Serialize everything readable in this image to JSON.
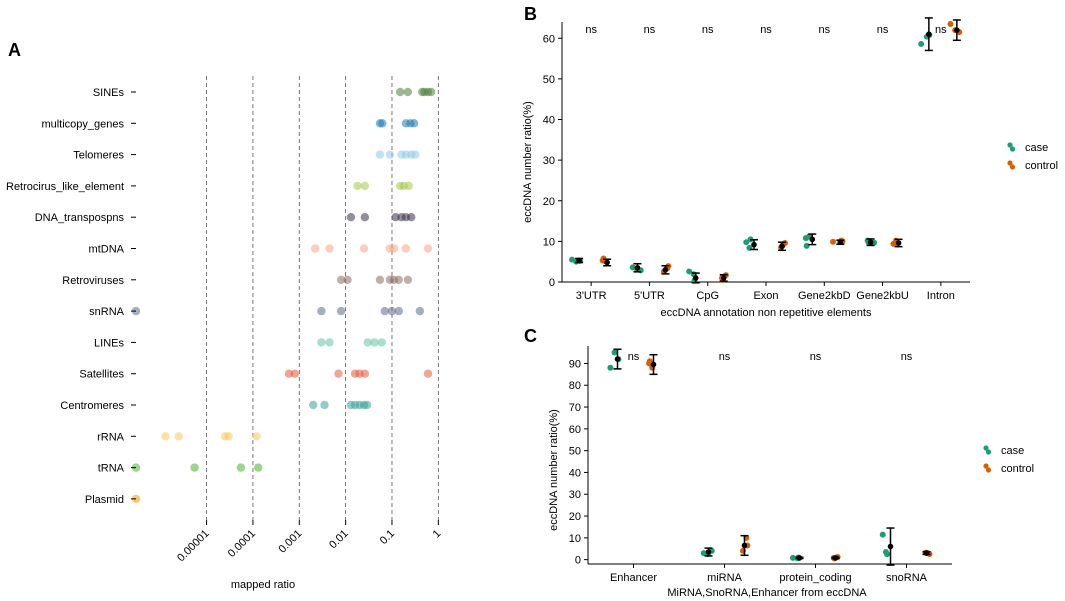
{
  "panel_labels": {
    "a": "A",
    "b": "B",
    "c": "C"
  },
  "colors": {
    "case": "#1b9e77",
    "control": "#d95f02",
    "axis": "#000000",
    "grid": "#555555"
  },
  "chart_data": [
    {
      "id": "A",
      "type": "scatter",
      "title": "",
      "xlabel": "mapped ratio",
      "ylabel": "",
      "x_scale": "log10",
      "xlim": [
        3e-07,
        1.2
      ],
      "x_ticks": [
        1e-05,
        0.0001,
        0.001,
        0.01,
        0.1,
        1
      ],
      "x_tick_labels": [
        "0.00001",
        "0.0001",
        "0.001",
        "0.01",
        "0.1",
        "1"
      ],
      "grid": "vertical dashed at ticks",
      "categories": [
        "SINEs",
        "multicopy_genes",
        "Telomeres",
        "Retrocirus_like_element",
        "DNA_transpospns",
        "mtDNA",
        "Retroviruses",
        "snRNA",
        "LINEs",
        "Satellites",
        "Centromeres",
        "rRNA",
        "tRNA",
        "Plasmid"
      ],
      "series": [
        {
          "name": "SINEs",
          "color": "#4f7f3a",
          "values": [
            0.15,
            0.22,
            0.45,
            0.5,
            0.6,
            0.7
          ]
        },
        {
          "name": "multicopy_genes",
          "color": "#1f78b4",
          "values": [
            0.055,
            0.062,
            0.2,
            0.25,
            0.3
          ]
        },
        {
          "name": "Telomeres",
          "color": "#8ecae6",
          "values": [
            0.055,
            0.09,
            0.16,
            0.2,
            0.26,
            0.32
          ]
        },
        {
          "name": "Retrocirus_like_element",
          "color": "#a6c84a",
          "values": [
            0.018,
            0.026,
            0.15,
            0.18,
            0.23
          ]
        },
        {
          "name": "DNA_transpospns",
          "color": "#3d3149",
          "values": [
            0.013,
            0.026,
            0.12,
            0.16,
            0.2,
            0.26
          ]
        },
        {
          "name": "mtDNA",
          "color": "#f4a582",
          "values": [
            0.0022,
            0.0045,
            0.025,
            0.09,
            0.11,
            0.2,
            0.6
          ]
        },
        {
          "name": "Retroviruses",
          "color": "#8c6d62",
          "values": [
            0.008,
            0.011,
            0.055,
            0.09,
            0.11,
            0.14,
            0.22
          ]
        },
        {
          "name": "snRNA",
          "color": "#5a6b8a",
          "values": [
            3e-07,
            0.003,
            0.008,
            0.07,
            0.1,
            0.14,
            0.4
          ]
        },
        {
          "name": "LINEs",
          "color": "#66c2a5",
          "values": [
            0.003,
            0.0045,
            0.03,
            0.042,
            0.06
          ]
        },
        {
          "name": "Satellites",
          "color": "#e45a3c",
          "values": [
            0.0006,
            0.0008,
            0.007,
            0.016,
            0.02,
            0.026,
            0.6
          ]
        },
        {
          "name": "Centromeres",
          "color": "#3f9e9b",
          "values": [
            0.002,
            0.0035,
            0.013,
            0.016,
            0.02,
            0.025,
            0.029
          ]
        },
        {
          "name": "rRNA",
          "color": "#f6c85f",
          "values": [
            1.3e-06,
            2.5e-06,
            2.5e-05,
            3e-05,
            0.00012
          ]
        },
        {
          "name": "tRNA",
          "color": "#4daf2a",
          "values": [
            3e-07,
            5.5e-06,
            5.5e-05,
            0.00013
          ]
        },
        {
          "name": "Plasmid",
          "color": "#e6a100",
          "values": [
            3e-07
          ]
        }
      ]
    },
    {
      "id": "B",
      "type": "scatter",
      "title": "",
      "xlabel": "eccDNA annotation non repetitive elements",
      "ylabel": "eccDNA number ratio(%)",
      "ylim": [
        0,
        64
      ],
      "y_ticks": [
        0,
        10,
        20,
        30,
        40,
        50,
        60
      ],
      "grid": false,
      "legend_position": "right",
      "categories": [
        "3'UTR",
        "5'UTR",
        "CpG",
        "Exon",
        "Gene2kbD",
        "Gene2kbU",
        "Intron"
      ],
      "significance": [
        "ns",
        "ns",
        "ns",
        "ns",
        "ns",
        "ns",
        "ns"
      ],
      "series": [
        {
          "name": "case",
          "points": [
            [
              5.2,
              5.5,
              5.0
            ],
            [
              3.6,
              2.9,
              3.2
            ],
            [
              1.9,
              0.4,
              2.6
            ],
            [
              9.8,
              10.5,
              8.4
            ],
            [
              11.2,
              8.9,
              10.8
            ],
            [
              10.2,
              9.7,
              9.8
            ],
            [
              60.8,
              60.4,
              58.6
            ]
          ],
          "means": [
            5.3,
            3.5,
            1.0,
            9.2,
            10.5,
            9.8,
            61.0
          ],
          "sd": [
            0.5,
            1.0,
            1.2,
            1.2,
            1.3,
            0.8,
            4.0
          ]
        },
        {
          "name": "control",
          "points": [
            [
              5.0,
              5.8,
              5.3
            ],
            [
              3.4,
              2.6,
              3.9
            ],
            [
              1.0,
              0.5,
              1.7
            ],
            [
              8.5,
              9.6,
              9.1
            ],
            [
              10.0,
              10.2,
              9.9
            ],
            [
              9.4,
              10.2,
              9.6
            ],
            [
              61.5,
              62.0,
              63.5
            ]
          ],
          "means": [
            4.8,
            3.0,
            1.0,
            8.8,
            9.8,
            9.6,
            62.0
          ],
          "sd": [
            0.8,
            1.0,
            0.8,
            1.0,
            0.5,
            0.9,
            2.5
          ]
        }
      ]
    },
    {
      "id": "C",
      "type": "scatter",
      "title": "",
      "xlabel": "MiRNA,SnoRNA,Enhancer from eccDNA",
      "ylabel": "eccDNA number ratio(%)",
      "ylim": [
        -2,
        98
      ],
      "y_ticks": [
        0,
        10,
        20,
        30,
        40,
        50,
        60,
        70,
        80,
        90
      ],
      "grid": false,
      "legend_position": "right",
      "categories": [
        "Enhancer",
        "miRNA",
        "protein_coding",
        "snoRNA"
      ],
      "significance": [
        "ns",
        "ns",
        "ns",
        "ns"
      ],
      "series": [
        {
          "name": "case",
          "points": [
            [
              92.0,
              88.0,
              95.0
            ],
            [
              3.0,
              4.0,
              2.6
            ],
            [
              0.6,
              1.0,
              0.8
            ],
            [
              11.5,
              2.5,
              3.5
            ]
          ],
          "means": [
            92.0,
            3.5,
            0.8,
            6.0
          ],
          "sd": [
            4.5,
            1.8,
            0.3,
            8.5
          ]
        },
        {
          "name": "control",
          "points": [
            [
              88.0,
              91.0,
              90.0
            ],
            [
              10.0,
              4.0,
              6.5
            ],
            [
              0.8,
              0.6,
              1.2
            ],
            [
              3.2,
              2.6,
              3.1
            ]
          ],
          "means": [
            89.5,
            6.5,
            0.8,
            3.0
          ],
          "sd": [
            4.5,
            4.5,
            0.3,
            0.6
          ]
        }
      ]
    }
  ]
}
